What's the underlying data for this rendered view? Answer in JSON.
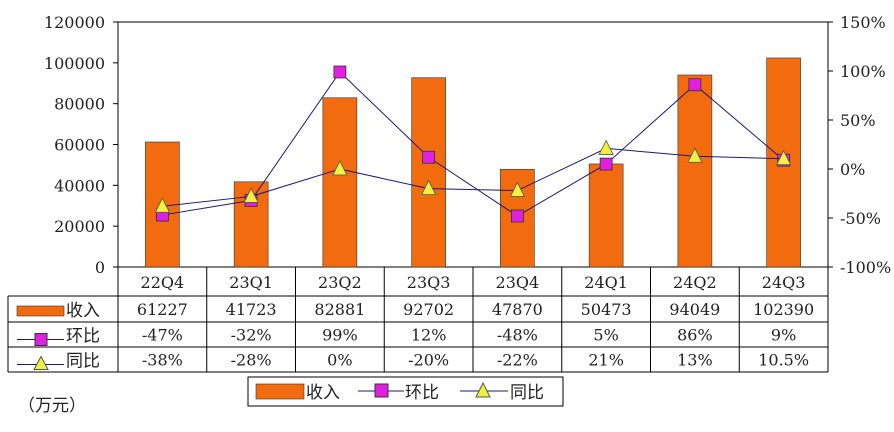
{
  "chart_data": {
    "type": "bar",
    "categories": [
      "22Q4",
      "23Q1",
      "23Q2",
      "23Q3",
      "23Q4",
      "24Q1",
      "24Q2",
      "24Q3"
    ],
    "series": [
      {
        "name": "收入",
        "type": "bar",
        "axis": "left",
        "color": "#F26B0F",
        "values": [
          61227,
          41723,
          82881,
          92702,
          47870,
          50473,
          94049,
          102390
        ],
        "labels": [
          "61227",
          "41723",
          "82881",
          "92702",
          "47870",
          "50473",
          "94049",
          "102390"
        ]
      },
      {
        "name": "环比",
        "type": "line",
        "axis": "right",
        "color": "#E020E0",
        "marker": "square",
        "values": [
          -47,
          -32,
          99,
          12,
          -48,
          5,
          86,
          9
        ],
        "labels": [
          "-47%",
          "-32%",
          "99%",
          "12%",
          "-48%",
          "5%",
          "86%",
          "9%"
        ]
      },
      {
        "name": "同比",
        "type": "line",
        "axis": "right",
        "color": "#F0F040",
        "marker": "triangle",
        "values": [
          -38,
          -28,
          0,
          -20,
          -22,
          21,
          13,
          10.5
        ],
        "labels": [
          "-38%",
          "-28%",
          "0%",
          "-20%",
          "-22%",
          "21%",
          "13%",
          "10.5%"
        ]
      }
    ],
    "y_left": {
      "range": [
        0,
        120000
      ],
      "ticks": [
        "0",
        "20000",
        "40000",
        "60000",
        "80000",
        "100000",
        "120000"
      ]
    },
    "y_right": {
      "range": [
        -100,
        150
      ],
      "ticks": [
        "-100%",
        "-50%",
        "0%",
        "50%",
        "100%",
        "150%"
      ]
    },
    "unit_label": "（万元）",
    "grid": false,
    "legend": "bottom",
    "data_table": true
  }
}
